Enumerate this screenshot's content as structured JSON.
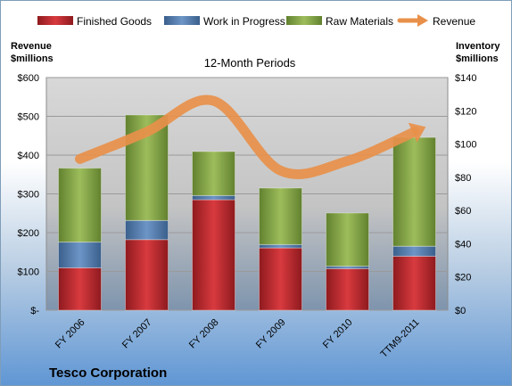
{
  "chart_data": {
    "type": "bar",
    "subtitle": "12-Month Periods",
    "company": "Tesco Corporation",
    "left_axis_title": [
      "Revenue",
      "$millions"
    ],
    "right_axis_title": [
      "Inventory",
      "$millions"
    ],
    "categories": [
      "FY 2006",
      "FY 2007",
      "FY 2008",
      "FY 2009",
      "FY 2010",
      "TTM9-2011"
    ],
    "left_ticks": [
      "$-",
      "$100",
      "$200",
      "$300",
      "$400",
      "$500",
      "$600"
    ],
    "right_ticks": [
      "$0",
      "$20",
      "$40",
      "$60",
      "$80",
      "$100",
      "$120",
      "$140"
    ],
    "left_ylim": [
      0,
      600
    ],
    "right_ylim": [
      0,
      140
    ],
    "stacked": true,
    "series": [
      {
        "name": "Finished Goods",
        "axis": "right",
        "color": "#c0272d",
        "values": [
          25.5,
          42.5,
          66.5,
          37.5,
          25.0,
          32.5
        ]
      },
      {
        "name": "Work in Progress",
        "axis": "right",
        "color": "#4f81bd",
        "values": [
          15.5,
          11.5,
          2.5,
          2.0,
          1.5,
          6.0
        ]
      },
      {
        "name": "Raw Materials",
        "axis": "right",
        "color": "#8db04a",
        "values": [
          44.5,
          63.5,
          26.5,
          34.0,
          32.0,
          65.5
        ]
      }
    ],
    "line_series": {
      "name": "Revenue",
      "axis": "left",
      "color": "#e8904a",
      "values": [
        390,
        460,
        540,
        360,
        385,
        460
      ]
    },
    "grid": true,
    "legend_position": "top"
  }
}
